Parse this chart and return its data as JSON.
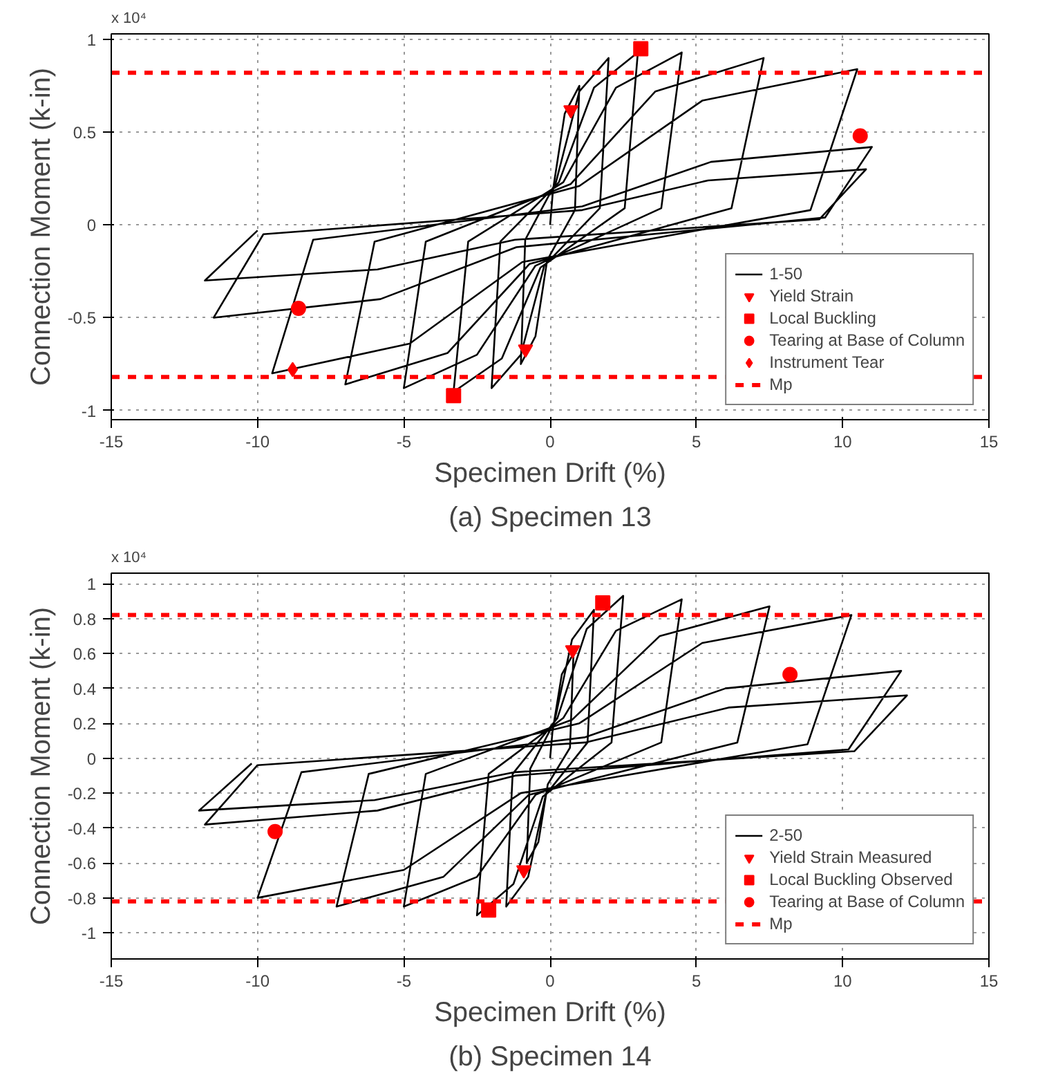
{
  "chart_data": [
    {
      "type": "line",
      "title": "(a) Specimen 13",
      "xlabel": "Specimen Drift (%)",
      "ylabel": "Connection Moment (k-in)",
      "annotations": [
        "x 10⁴"
      ],
      "xlim": [
        -15,
        15
      ],
      "xticks": [
        -15,
        -10,
        -5,
        0,
        5,
        10,
        15
      ],
      "ylim": [
        -1.05,
        1.03
      ],
      "yticks": [
        -1,
        -0.5,
        0,
        0.5,
        1
      ],
      "grid": true,
      "legend": "bottom right",
      "series": [
        {
          "name": "1-50",
          "color": "#000000",
          "x": [
            0,
            0.1,
            0.5,
            1,
            0.85,
            -0.1,
            -0.5,
            -1,
            -0.85,
            0.2,
            1,
            2,
            1.7,
            -0.2,
            -1,
            -2,
            -1.7,
            0.3,
            1.5,
            3,
            2.55,
            -0.33,
            -1.65,
            -3.3,
            -2.8,
            0.45,
            2.25,
            4.5,
            3.8,
            -0.5,
            -2.5,
            -5,
            -4.25,
            0.7,
            3.6,
            7.3,
            6.2,
            -0.7,
            -3.5,
            -7,
            -6,
            1,
            5.2,
            10.5,
            8.9,
            -0.95,
            -4.8,
            -9.5,
            -8.1,
            1.1,
            5.5,
            11,
            9.4,
            -1.15,
            -5.8,
            -11.5,
            -9.8,
            1.1,
            5.4,
            10.8,
            9.2,
            -1.2,
            -5.9,
            -11.8,
            -10
          ],
          "values": [
            0,
            0.19,
            0.6,
            0.75,
            0.08,
            -0.19,
            -0.6,
            -0.75,
            -0.08,
            0.23,
            0.72,
            0.9,
            0.09,
            -0.22,
            -0.7,
            -0.88,
            -0.09,
            0.23,
            0.74,
            0.93,
            0.09,
            -0.23,
            -0.72,
            -0.9,
            -0.09,
            0.23,
            0.74,
            0.93,
            0.09,
            -0.22,
            -0.7,
            -0.88,
            -0.09,
            0.22,
            0.72,
            0.9,
            0.09,
            -0.21,
            -0.69,
            -0.86,
            -0.09,
            0.21,
            0.67,
            0.84,
            0.08,
            -0.2,
            -0.64,
            -0.8,
            -0.08,
            0.1,
            0.34,
            0.42,
            0.04,
            -0.12,
            -0.4,
            -0.5,
            -0.05,
            0.08,
            0.24,
            0.3,
            0.03,
            -0.08,
            -0.24,
            -0.3,
            -0.03
          ]
        },
        {
          "name": "Yield Strain",
          "color": "#ff0000",
          "type": "scatter",
          "marker": "triangle",
          "x": [
            0.71,
            -0.84
          ],
          "values": [
            0.62,
            -0.67
          ]
        },
        {
          "name": "Local Buckling",
          "color": "#ff0000",
          "type": "scatter",
          "marker": "square",
          "x": [
            3.1,
            -3.3
          ],
          "values": [
            0.95,
            -0.92
          ]
        },
        {
          "name": "Tearing at Base of Column",
          "color": "#ff0000",
          "type": "scatter",
          "marker": "circle",
          "x": [
            10.6,
            -8.6
          ],
          "values": [
            0.48,
            -0.45
          ]
        },
        {
          "name": "Instrument Tear",
          "color": "#ff0000",
          "type": "scatter",
          "marker": "diamond",
          "x": [
            -8.8
          ],
          "values": [
            -0.78
          ]
        }
      ],
      "ref_lines": [
        {
          "axis": "y",
          "value": 0.82,
          "label": "Mp",
          "color": "#ff0000",
          "line_style": "dashed"
        },
        {
          "axis": "y",
          "value": -0.82,
          "color": "#ff0000",
          "line_style": "dashed"
        }
      ]
    },
    {
      "type": "line",
      "title": "(b) Specimen 14",
      "xlabel": "Specimen Drift (%)",
      "ylabel": "Connection Moment (k-in)",
      "annotations": [
        "x 10⁴"
      ],
      "xlim": [
        -15,
        15
      ],
      "xticks": [
        -15,
        -10,
        -5,
        0,
        5,
        10,
        15
      ],
      "ylim": [
        -1.15,
        1.06
      ],
      "yticks": [
        -1,
        -0.8,
        -0.6,
        -0.4,
        -0.2,
        0,
        0.2,
        0.4,
        0.6,
        0.8,
        1
      ],
      "grid": true,
      "legend": "bottom right",
      "series": [
        {
          "name": "2-50",
          "color": "#000000",
          "x": [
            0,
            0.08,
            0.4,
            0.8,
            0.68,
            -0.08,
            -0.4,
            -0.8,
            -0.68,
            0.15,
            0.75,
            1.5,
            1.28,
            -0.15,
            -0.75,
            -1.5,
            -1.28,
            0.25,
            1.25,
            2.5,
            2.1,
            -0.25,
            -1.25,
            -2.5,
            -2.1,
            0.45,
            2.25,
            4.5,
            3.8,
            -0.5,
            -2.5,
            -5,
            -4.25,
            0.75,
            3.75,
            7.5,
            6.4,
            -0.73,
            -3.65,
            -7.3,
            -6.2,
            1,
            5.2,
            10.3,
            8.8,
            -1,
            -5,
            -10,
            -8.5,
            1.2,
            6,
            12,
            10.2,
            -1.2,
            -5.9,
            -11.8,
            -10,
            1.2,
            6.1,
            12.2,
            10.4,
            -1.2,
            -6,
            -12,
            -10.2
          ],
          "values": [
            0,
            0.15,
            0.48,
            0.6,
            0.06,
            -0.15,
            -0.48,
            -0.6,
            -0.06,
            0.21,
            0.68,
            0.85,
            0.09,
            -0.21,
            -0.68,
            -0.85,
            -0.09,
            0.23,
            0.74,
            0.93,
            0.09,
            -0.22,
            -0.72,
            -0.9,
            -0.09,
            0.23,
            0.73,
            0.91,
            0.09,
            -0.21,
            -0.68,
            -0.85,
            -0.09,
            0.22,
            0.7,
            0.87,
            0.09,
            -0.21,
            -0.68,
            -0.85,
            -0.09,
            0.2,
            0.66,
            0.82,
            0.08,
            -0.2,
            -0.64,
            -0.8,
            -0.08,
            0.12,
            0.4,
            0.5,
            0.05,
            -0.1,
            -0.3,
            -0.38,
            -0.04,
            0.09,
            0.29,
            0.36,
            0.04,
            -0.08,
            -0.24,
            -0.3,
            -0.03
          ]
        },
        {
          "name": "Yield Strain Measured",
          "color": "#ff0000",
          "type": "scatter",
          "marker": "triangle",
          "x": [
            0.77,
            -0.9
          ],
          "values": [
            0.62,
            -0.64
          ]
        },
        {
          "name": "Local Buckling Observed",
          "color": "#ff0000",
          "type": "scatter",
          "marker": "square",
          "x": [
            1.8,
            -2.1
          ],
          "values": [
            0.89,
            -0.87
          ]
        },
        {
          "name": "Tearing at Base of Column",
          "color": "#ff0000",
          "type": "scatter",
          "marker": "circle",
          "x": [
            8.2,
            -9.4
          ],
          "values": [
            0.48,
            -0.42
          ]
        }
      ],
      "ref_lines": [
        {
          "axis": "y",
          "value": 0.82,
          "label": "Mp",
          "color": "#ff0000",
          "line_style": "dashed"
        },
        {
          "axis": "y",
          "value": -0.82,
          "color": "#ff0000",
          "line_style": "dashed"
        }
      ]
    }
  ]
}
